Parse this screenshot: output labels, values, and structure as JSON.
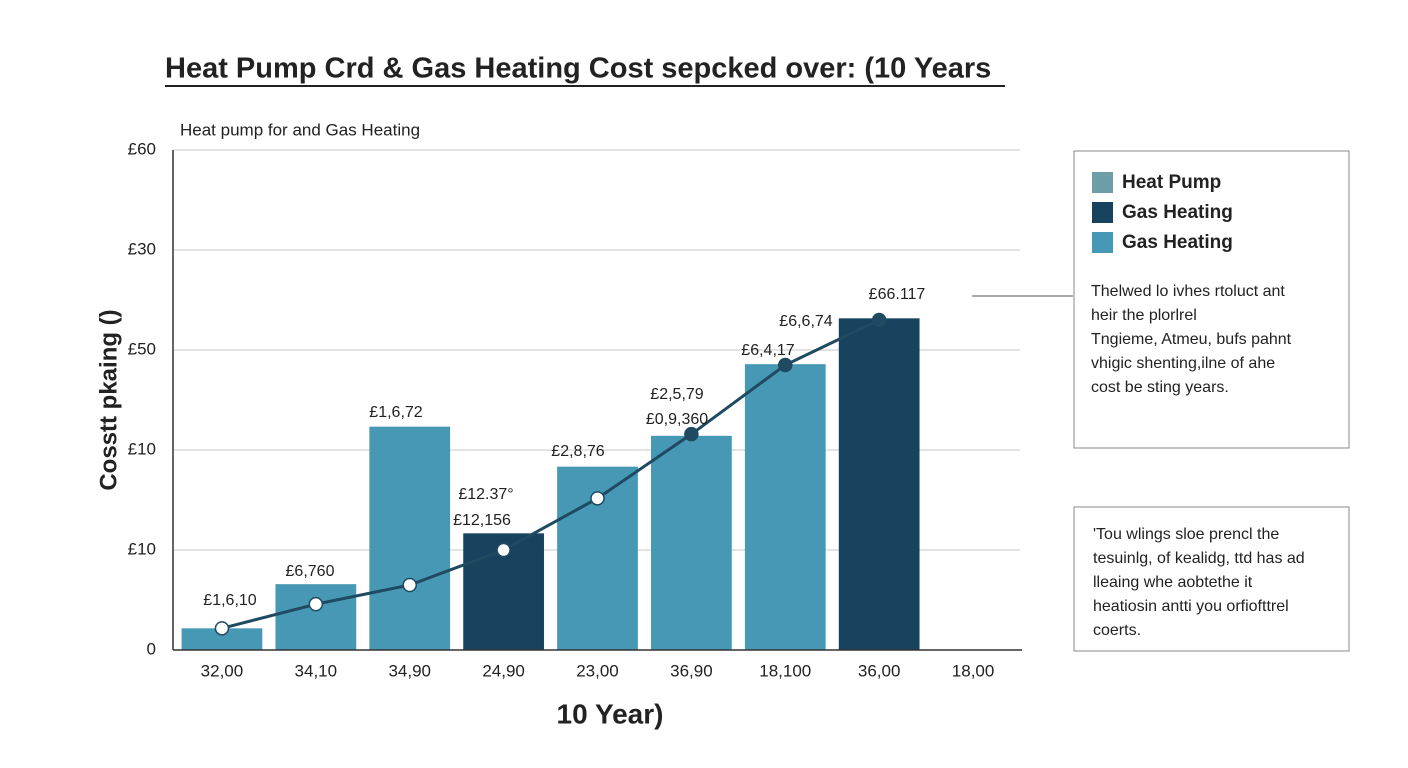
{
  "chart_data": {
    "type": "bar",
    "title": "Heat Pump Crd & Gas Heating Cost sepcked over: (10 Years",
    "subtitle": "Heat pump for and Gas Heating",
    "y_label": "Cosstt pkaing ()",
    "x_label": "10 Year)",
    "categories": [
      "32,00",
      "34,10",
      "34,90",
      "24,90",
      "23,00",
      "36,90",
      "18,100",
      "36,00",
      "18,00"
    ],
    "series": [
      {
        "name": "Heat Pump",
        "type": "line",
        "color": "#1f4a62",
        "values": [
          2.6,
          5.5,
          7.8,
          12.0,
          18.2,
          25.9,
          34.2,
          39.6,
          null
        ]
      },
      {
        "name": "Gas Heating",
        "type": "bar",
        "color": "#17435e",
        "values": [
          null,
          null,
          null,
          14.0,
          null,
          null,
          null,
          39.8,
          null
        ]
      },
      {
        "name": "Gas Heating",
        "type": "bar",
        "color": "#4698b4",
        "values": [
          2.6,
          7.9,
          26.8,
          null,
          22.0,
          25.7,
          34.3,
          null,
          null
        ]
      }
    ],
    "annotations": [
      "£1,6,10",
      "£6,760",
      "£1,6,72",
      "£12.37°",
      "£12,156",
      "£2,8,76",
      "£2,5,79",
      "£0,9,360",
      "£6,4,17",
      "£6,6,74",
      "£66.117"
    ],
    "ylim": [
      0,
      60
    ],
    "yticks": [
      0,
      {
        "value": 12,
        "label": "£10"
      },
      {
        "value": 24,
        "label": "£10"
      },
      {
        "value": 36,
        "label": "£50"
      },
      {
        "value": 48,
        "label": "£30"
      },
      {
        "value": 60,
        "label": "£60"
      }
    ],
    "grid": true,
    "notes": [
      [
        "Thelwed lo ivhes rtoluct ant",
        "heir the plorlrel",
        "Tngieme, Atmeu, bufs pahnt",
        "vhigic shenting,ilne of ahe",
        "cost be sting years."
      ],
      [
        "'Tou wlings sloe prencl the",
        "tesuinlg, of kealidg, ttd has ad",
        "lleaing whe aobtethe it",
        "heatiosin antti you orfiofttrel",
        "coerts."
      ]
    ]
  }
}
